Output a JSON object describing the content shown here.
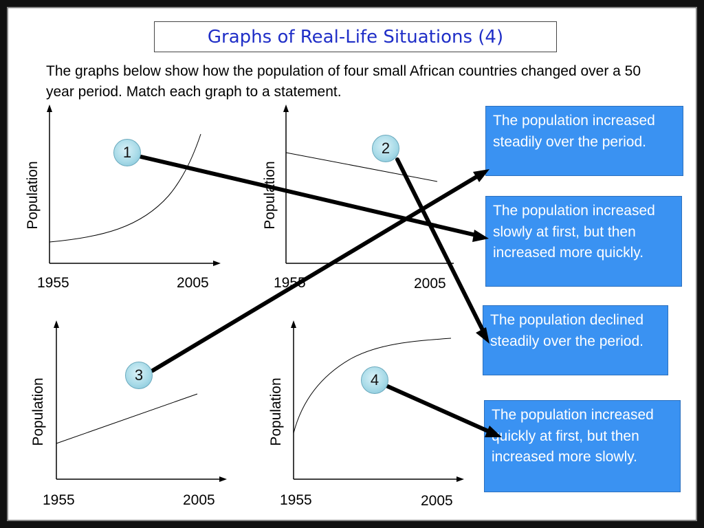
{
  "title": "Graphs of Real-Life Situations (4)",
  "intro": "The graphs below show how the population of four small African countries changed over a 50 year period. Match each graph to a statement.",
  "axis": {
    "ylabel": "Population",
    "x_start": "1955",
    "x_end": "2005"
  },
  "graphs": [
    {
      "number": "1"
    },
    {
      "number": "2"
    },
    {
      "number": "3"
    },
    {
      "number": "4"
    }
  ],
  "statements": [
    "The population increased steadily over the period.",
    "The population increased slowly at first, but then increased more quickly.",
    "The population declined steadily over the period.",
    "The population increased quickly at first, but then increased more slowly."
  ],
  "colors": {
    "title": "#1f2ec7",
    "statement_bg": "#3a92f2",
    "badge": "#a9dbe8",
    "arrow": "#000000"
  }
}
